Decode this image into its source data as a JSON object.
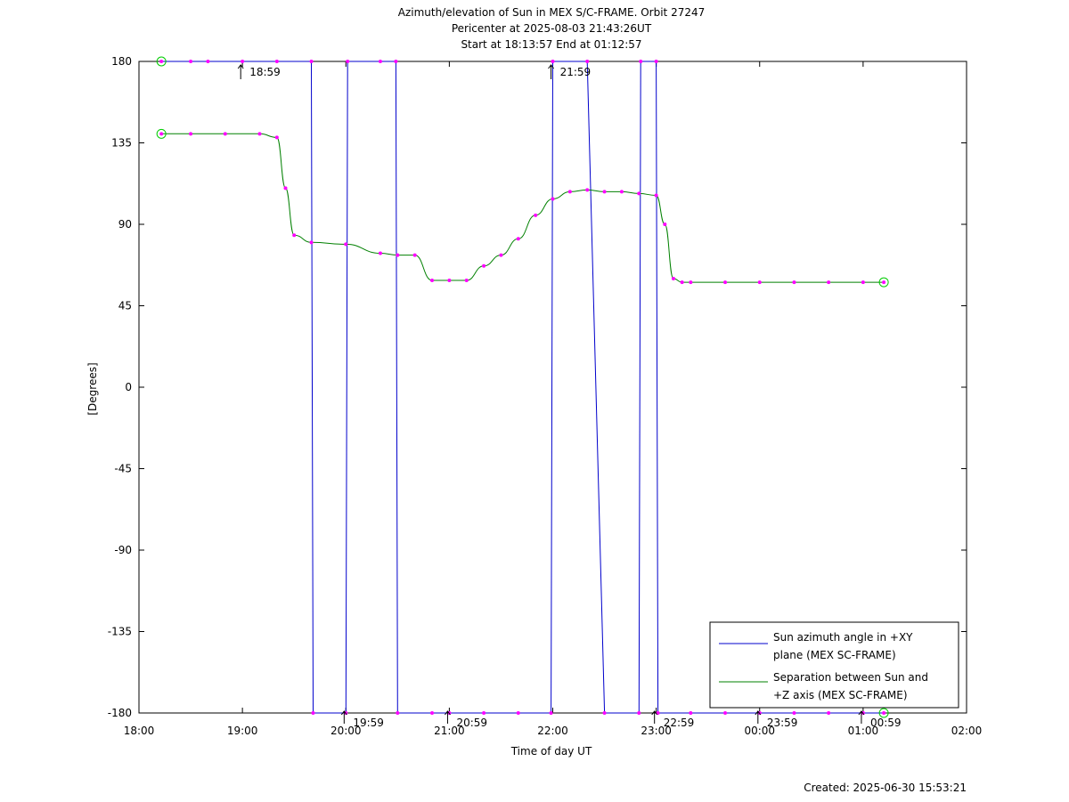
{
  "chart_data": {
    "type": "line",
    "title_lines": [
      "Azimuth/elevation of Sun in MEX S/C-FRAME.  Orbit 27247",
      "Pericenter at 2025-08-03 21:43:26UT",
      "Start at 18:13:57 End at 01:12:57"
    ],
    "xlabel": "Time of day UT",
    "ylabel": "[Degrees]",
    "xlim": [
      "18:00",
      "02:00"
    ],
    "ylim": [
      -180,
      180
    ],
    "x_ticks": [
      "18:00",
      "19:00",
      "20:00",
      "21:00",
      "22:00",
      "23:00",
      "00:00",
      "01:00",
      "02:00"
    ],
    "y_ticks": [
      180,
      135,
      90,
      45,
      0,
      -45,
      -90,
      -135,
      -180
    ],
    "grid": false,
    "legend_position": "bottom-right",
    "footer": "Created: 2025-06-30 15:53:21",
    "time_markers": [
      {
        "time": "18:59",
        "label": "18:59",
        "row": "top"
      },
      {
        "time": "19:59",
        "label": "19:59",
        "row": "bottom"
      },
      {
        "time": "20:59",
        "label": "20:59",
        "row": "bottom"
      },
      {
        "time": "21:59",
        "label": "21:59",
        "row": "top"
      },
      {
        "time": "22:59",
        "label": "22:59",
        "row": "bottom"
      },
      {
        "time": "23:59",
        "label": "23:59",
        "row": "bottom"
      },
      {
        "time": "00:59",
        "label": "00:59",
        "row": "bottom"
      }
    ],
    "series": [
      {
        "name": "Sun azimuth angle in +XY plane (MEX SC-FRAME)",
        "legend_lines": [
          "Sun azimuth angle in +XY",
          "plane (MEX SC-FRAME)"
        ],
        "color": "#0000cc",
        "x": [
          "18:13",
          "18:30",
          "18:40",
          "19:00",
          "19:20",
          "19:40",
          "19:41",
          "20:00",
          "20:01",
          "20:20",
          "20:29",
          "20:30",
          "20:50",
          "21:00",
          "21:20",
          "21:40",
          "21:59",
          "22:00",
          "22:20",
          "22:30",
          "22:50",
          "22:51",
          "23:00",
          "23:01",
          "23:20",
          "23:40",
          "00:00",
          "00:20",
          "00:40",
          "01:00",
          "01:12"
        ],
        "y": [
          180,
          180,
          180,
          180,
          180,
          180,
          -180,
          -180,
          180,
          180,
          180,
          -180,
          -180,
          -180,
          -180,
          -180,
          -180,
          180,
          180,
          -180,
          -180,
          180,
          180,
          -180,
          -180,
          -180,
          -180,
          -180,
          -180,
          -180,
          -180
        ]
      },
      {
        "name": "Separation between Sun and +Z axis (MEX SC-FRAME)",
        "legend_lines": [
          "Separation between Sun and",
          "+Z axis (MEX SC-FRAME)"
        ],
        "color": "#008000",
        "x": [
          "18:13",
          "18:30",
          "18:50",
          "19:10",
          "19:20",
          "19:25",
          "19:30",
          "19:40",
          "20:00",
          "20:20",
          "20:30",
          "20:40",
          "20:50",
          "21:00",
          "21:10",
          "21:20",
          "21:30",
          "21:40",
          "21:50",
          "22:00",
          "22:10",
          "22:20",
          "22:30",
          "22:40",
          "22:50",
          "23:00",
          "23:05",
          "23:10",
          "23:15",
          "23:20",
          "23:40",
          "00:00",
          "00:20",
          "00:40",
          "01:00",
          "01:12"
        ],
        "y": [
          140,
          140,
          140,
          140,
          138,
          110,
          84,
          80,
          79,
          74,
          73,
          73,
          59,
          59,
          59,
          67,
          73,
          82,
          95,
          104,
          108,
          109,
          108,
          108,
          107,
          106,
          90,
          60,
          58,
          58,
          58,
          58,
          58,
          58,
          58,
          58
        ]
      }
    ]
  }
}
